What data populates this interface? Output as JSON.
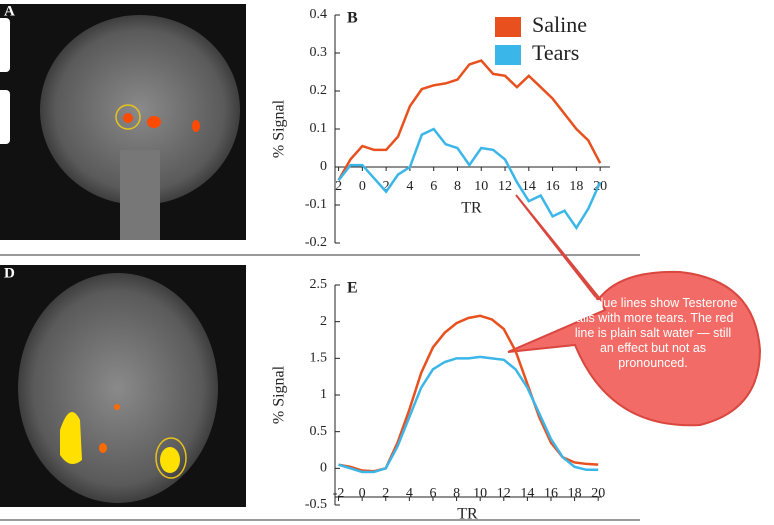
{
  "images": [
    {
      "label": "A"
    },
    {
      "label": "D"
    }
  ],
  "callout": "The blue lines show Testerone falls with more tears. The red line is plain salt water — still an effect but not as pronounced.",
  "chart_data": [
    {
      "type": "line",
      "panel_label": "B",
      "ylabel": "% Signal",
      "xlabel": "TR",
      "xaxis_position": "zero",
      "x": [
        -2,
        -1,
        0,
        1,
        2,
        3,
        4,
        5,
        6,
        7,
        8,
        9,
        10,
        11,
        12,
        13,
        14,
        15,
        16,
        17,
        18,
        19,
        20
      ],
      "series": [
        {
          "name": "Saline",
          "color": "#e8501e",
          "values": [
            -0.035,
            0.02,
            0.055,
            0.045,
            0.045,
            0.08,
            0.16,
            0.205,
            0.215,
            0.22,
            0.23,
            0.27,
            0.28,
            0.245,
            0.24,
            0.21,
            0.24,
            0.21,
            0.18,
            0.14,
            0.1,
            0.07,
            0.01
          ]
        },
        {
          "name": "Tears",
          "color": "#3bb6e8",
          "values": [
            -0.035,
            0.005,
            0.005,
            -0.03,
            -0.065,
            -0.02,
            0.0,
            0.085,
            0.1,
            0.06,
            0.05,
            0.005,
            0.05,
            0.045,
            0.02,
            -0.04,
            -0.09,
            -0.075,
            -0.13,
            -0.115,
            -0.16,
            -0.11,
            -0.04
          ]
        }
      ],
      "xlim": [
        -2.3,
        21.5
      ],
      "ylim": [
        -0.2,
        0.4
      ],
      "xticks": [
        {
          "value": -2,
          "label": "2"
        },
        0,
        2,
        4,
        6,
        8,
        10,
        12,
        14,
        16,
        18,
        20
      ],
      "yticks": [
        -0.2,
        -0.1,
        0,
        0.1,
        0.2,
        0.3,
        0.4
      ],
      "legend": "upper right"
    },
    {
      "type": "line",
      "panel_label": "E",
      "ylabel": "% Signal",
      "xlabel": "TR",
      "xaxis_position": "bottom",
      "x": [
        -2,
        -1,
        0,
        1,
        2,
        3,
        4,
        5,
        6,
        7,
        8,
        9,
        10,
        11,
        12,
        13,
        14,
        15,
        16,
        17,
        18,
        19,
        20
      ],
      "series": [
        {
          "color": "#e8501e",
          "values": [
            0.05,
            0.02,
            -0.03,
            -0.04,
            0.0,
            0.35,
            0.8,
            1.3,
            1.65,
            1.85,
            1.98,
            2.05,
            2.08,
            2.03,
            1.9,
            1.6,
            1.15,
            0.7,
            0.35,
            0.15,
            0.08,
            0.06,
            0.05
          ]
        },
        {
          "color": "#3bb6e8",
          "values": [
            0.05,
            0.0,
            -0.05,
            -0.05,
            0.0,
            0.3,
            0.7,
            1.1,
            1.35,
            1.45,
            1.5,
            1.5,
            1.52,
            1.5,
            1.48,
            1.35,
            1.1,
            0.75,
            0.4,
            0.15,
            0.02,
            -0.02,
            -0.02
          ]
        }
      ],
      "xlim": [
        -2.3,
        21
      ],
      "ylim": [
        -0.5,
        2.5
      ],
      "xticks": [
        -2,
        0,
        2,
        4,
        6,
        8,
        10,
        12,
        14,
        16,
        18,
        20
      ],
      "yticks": [
        -0.5,
        0,
        0.5,
        1,
        1.5,
        2,
        2.5
      ]
    }
  ]
}
